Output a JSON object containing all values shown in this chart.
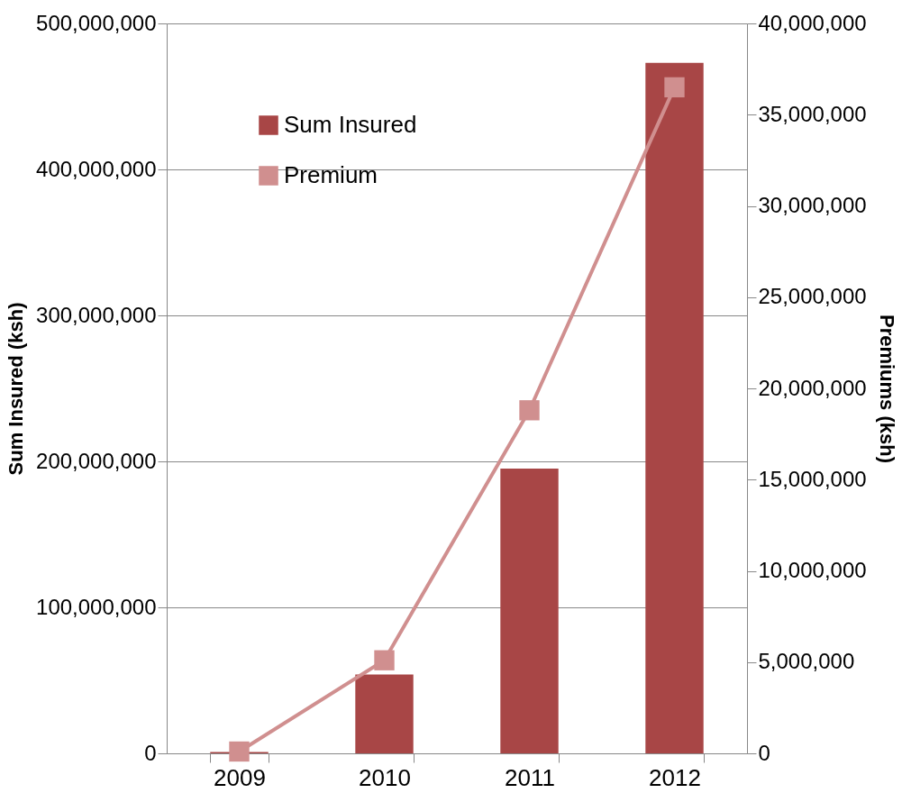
{
  "chart_data": {
    "type": "bar",
    "categories": [
      "2009",
      "2010",
      "2011",
      "2012"
    ],
    "series": [
      {
        "name": "Sum Insured",
        "color": "#a84646",
        "values": [
          1000000,
          54000000,
          195000000,
          473000000
        ]
      },
      {
        "name": "Premium",
        "type": "line",
        "axis": "y2",
        "color": "#d08f8f",
        "marker": "square",
        "values": [
          100000,
          5100000,
          18800000,
          36500000
        ]
      }
    ],
    "ylabel": "Sum Insured (ksh)",
    "y2label": "Premiums (ksh)",
    "ylim": [
      0,
      500000000
    ],
    "yticks": [
      0,
      {
        "value": 100000000,
        "label": "100,000,000"
      },
      {
        "value": 200000000,
        "label": "200,000,000"
      },
      {
        "value": 300000000,
        "label": "300,000,000"
      },
      {
        "value": 400000000,
        "label": "400,000,000"
      },
      {
        "value": 500000000,
        "label": "500,000,000"
      }
    ],
    "y2lim": [
      0,
      40000000
    ],
    "y2ticks": [
      0,
      {
        "value": 5000000,
        "label": "5,000,000"
      },
      {
        "value": 10000000,
        "label": "10,000,000"
      },
      {
        "value": 15000000,
        "label": "15,000,000"
      },
      {
        "value": 20000000,
        "label": "20,000,000"
      },
      {
        "value": 25000000,
        "label": "25,000,000"
      },
      {
        "value": 30000000,
        "label": "30,000,000"
      },
      {
        "value": 35000000,
        "label": "35,000,000"
      },
      {
        "value": 40000000,
        "label": "40,000,000"
      }
    ],
    "grid": "y",
    "legend": "top left"
  }
}
